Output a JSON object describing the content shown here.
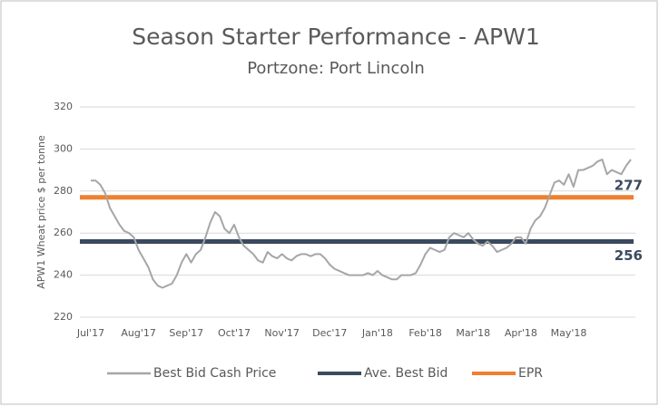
{
  "chart_data": {
    "type": "line",
    "title": "Season Starter Performance - APW1",
    "subtitle": "Portzone: Port Lincoln",
    "y_label": "APW1 Wheat price $ per tonne",
    "categories": [
      "Jul'17",
      null,
      null,
      null,
      null,
      null,
      null,
      null,
      null,
      null,
      "Aug'17",
      null,
      null,
      null,
      null,
      null,
      null,
      null,
      null,
      null,
      "Sep'17",
      null,
      null,
      null,
      null,
      null,
      null,
      null,
      null,
      null,
      "Oct'17",
      null,
      null,
      null,
      null,
      null,
      null,
      null,
      null,
      null,
      "Nov'17",
      null,
      null,
      null,
      null,
      null,
      null,
      null,
      null,
      null,
      "Dec'17",
      null,
      null,
      null,
      null,
      null,
      null,
      null,
      null,
      null,
      "Jan'18",
      null,
      null,
      null,
      null,
      null,
      null,
      null,
      null,
      null,
      "Feb'18",
      null,
      null,
      null,
      null,
      null,
      null,
      null,
      null,
      null,
      "Mar'18",
      null,
      null,
      null,
      null,
      null,
      null,
      null,
      null,
      null,
      "Apr'18",
      null,
      null,
      null,
      null,
      null,
      null,
      null,
      null,
      null,
      "May'18",
      null,
      null,
      null,
      null,
      null,
      null,
      null,
      null,
      null,
      null,
      null,
      null,
      null
    ],
    "series": [
      {
        "name": "Best Bid Cash Price",
        "color": "#a6a6a6",
        "values": [
          285,
          285,
          283,
          279,
          272,
          268,
          264,
          261,
          260,
          258,
          252,
          248,
          244,
          238,
          235,
          234,
          235,
          236,
          240,
          246,
          250,
          246,
          250,
          252,
          258,
          265,
          270,
          268,
          262,
          260,
          264,
          258,
          254,
          252,
          250,
          247,
          246,
          251,
          249,
          248,
          250,
          248,
          247,
          249,
          250,
          250,
          249,
          250,
          250,
          248,
          245,
          243,
          242,
          241,
          240,
          240,
          240,
          240,
          241,
          240,
          242,
          240,
          239,
          238,
          238,
          240,
          240,
          240,
          241,
          245,
          250,
          253,
          252,
          251,
          252,
          258,
          260,
          259,
          258,
          260,
          257,
          255,
          254,
          256,
          254,
          251,
          252,
          253,
          255,
          258,
          258,
          255,
          262,
          266,
          268,
          272,
          278,
          284,
          285,
          283,
          288,
          282,
          290,
          290,
          291,
          292,
          294,
          295,
          288,
          290,
          289,
          288,
          292,
          295
        ]
      }
    ],
    "reference_lines": [
      {
        "name": "Ave. Best Bid",
        "value": 256,
        "color": "#3b4a5e"
      },
      {
        "name": "EPR",
        "value": 277,
        "color": "#f07f2e"
      }
    ],
    "ylim": [
      220,
      320
    ],
    "yticks": [
      220,
      240,
      260,
      280,
      300,
      320
    ],
    "grid": true,
    "legend": "bottom"
  }
}
